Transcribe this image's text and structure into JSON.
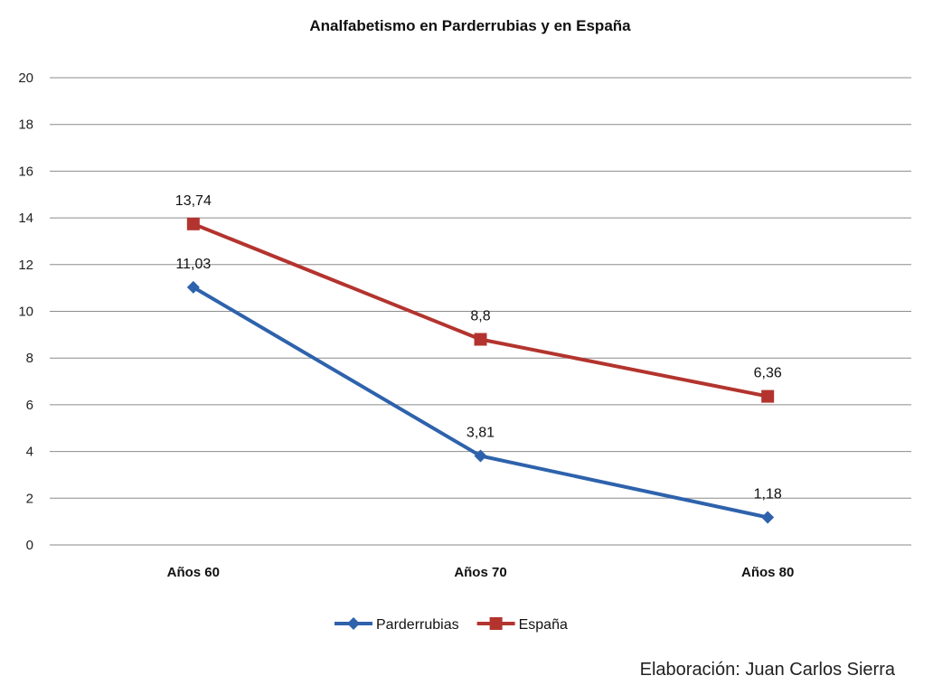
{
  "chart_data": {
    "type": "line",
    "title": "Analfabetismo en Parderrubias y en España",
    "categories": [
      "Años 60",
      "Años 70",
      "Años 80"
    ],
    "series": [
      {
        "name": "Parderrubias",
        "values": [
          11.03,
          3.81,
          1.18
        ],
        "labels": [
          "11,03",
          "3,81",
          "1,18"
        ],
        "color": "#2E62AC",
        "marker": "diamond"
      },
      {
        "name": "España",
        "values": [
          13.74,
          8.8,
          6.36
        ],
        "labels": [
          "13,74",
          "8,8",
          "6,36"
        ],
        "color": "#B3342E",
        "marker": "square"
      }
    ],
    "ylim": [
      0,
      20
    ],
    "yticks": [
      0,
      2,
      4,
      6,
      8,
      10,
      12,
      14,
      16,
      18,
      20
    ],
    "grid": true,
    "legend": "bottom",
    "xlabel": "",
    "ylabel": ""
  },
  "credit": "Elaboración: Juan Carlos Sierra"
}
